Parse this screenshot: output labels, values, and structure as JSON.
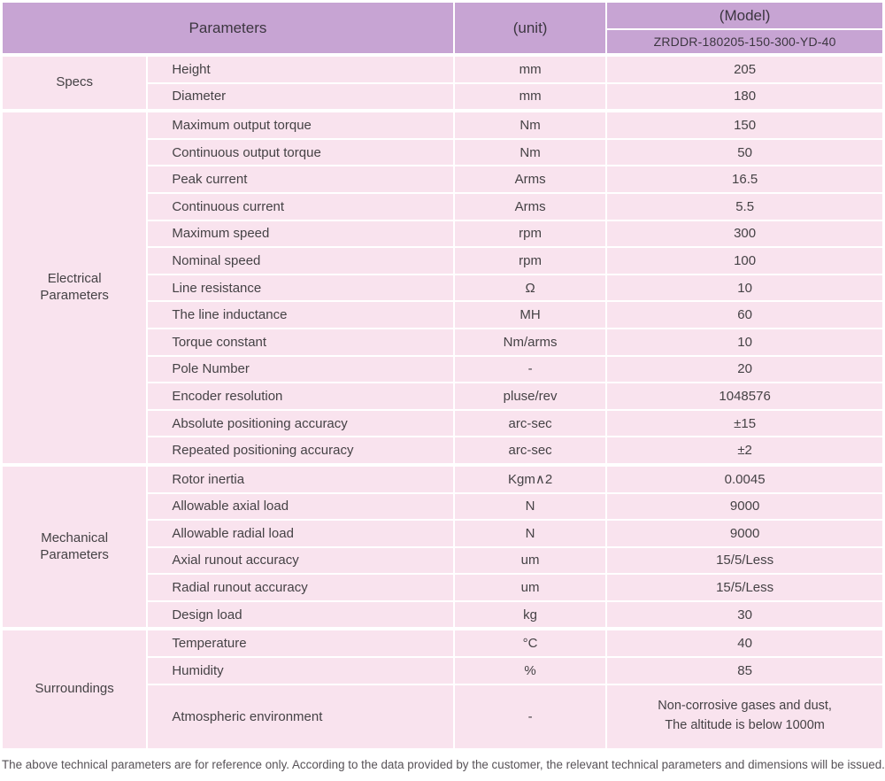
{
  "header": {
    "parameters_label": "Parameters",
    "unit_label": "(unit)",
    "model_label": "(Model)",
    "model_value": "ZRDDR-180205-150-300-YD-40"
  },
  "groups": [
    {
      "label": "Specs",
      "rows": [
        {
          "param": "Height",
          "unit": "mm",
          "value": "205"
        },
        {
          "param": "Diameter",
          "unit": "mm",
          "value": "180"
        }
      ]
    },
    {
      "label": "Electrical Parameters",
      "rows": [
        {
          "param": "Maximum output torque",
          "unit": "Nm",
          "value": "150"
        },
        {
          "param": "Continuous output torque",
          "unit": "Nm",
          "value": "50"
        },
        {
          "param": "Peak current",
          "unit": "Arms",
          "value": "16.5"
        },
        {
          "param": "Continuous current",
          "unit": "Arms",
          "value": "5.5"
        },
        {
          "param": "Maximum speed",
          "unit": "rpm",
          "value": "300"
        },
        {
          "param": "Nominal speed",
          "unit": "rpm",
          "value": "100"
        },
        {
          "param": "Line resistance",
          "unit": "Ω",
          "value": "10"
        },
        {
          "param": "The line inductance",
          "unit": "MH",
          "value": "60"
        },
        {
          "param": "Torque constant",
          "unit": "Nm/arms",
          "value": "10"
        },
        {
          "param": "Pole Number",
          "unit": "-",
          "value": "20"
        },
        {
          "param": "Encoder resolution",
          "unit": "pluse/rev",
          "value": "1048576"
        },
        {
          "param": "Absolute positioning accuracy",
          "unit": "arc-sec",
          "value": "±15"
        },
        {
          "param": "Repeated positioning accuracy",
          "unit": "arc-sec",
          "value": "±2"
        }
      ]
    },
    {
      "label": "Mechanical Parameters",
      "rows": [
        {
          "param": "Rotor inertia",
          "unit": "Kgm∧2",
          "value": "0.0045"
        },
        {
          "param": "Allowable axial load",
          "unit": "N",
          "value": "9000"
        },
        {
          "param": "Allowable radial load",
          "unit": "N",
          "value": "9000"
        },
        {
          "param": "Axial runout accuracy",
          "unit": "um",
          "value": "15/5/Less"
        },
        {
          "param": "Radial runout accuracy",
          "unit": "um",
          "value": "15/5/Less"
        },
        {
          "param": "Design load",
          "unit": "kg",
          "value": "30"
        }
      ]
    },
    {
      "label": "Surroundings",
      "rows": [
        {
          "param": "Temperature",
          "unit": "°C",
          "value": "40"
        },
        {
          "param": "Humidity",
          "unit": "%",
          "value": "85"
        },
        {
          "param": "Atmospheric environment",
          "unit": "-",
          "value": "Non-corrosive gases and dust,\nThe altitude is below 1000m"
        }
      ]
    }
  ],
  "footer": {
    "note": "The above technical parameters are for reference only. According to the data provided by the customer, the relevant technical parameters and dimensions will be issued."
  },
  "colors": {
    "header_bg": "#c7a4d3",
    "row_bg": "#f9e3ee",
    "text": "#454245"
  }
}
